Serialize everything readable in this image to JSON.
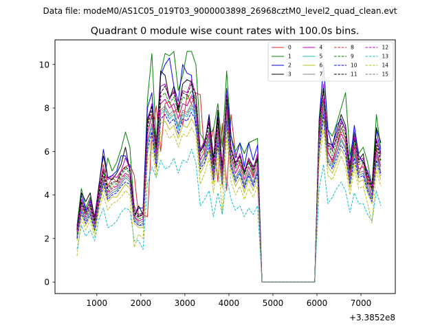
{
  "suptitle": "Data file: modeM0/AS1C05_019T03_9000003898_26968cztM0_level2_quad_clean.evt",
  "chart_data": {
    "type": "line",
    "title": "Quadrant 0 module wise count rates with 100.0s bins.",
    "xlabel": "",
    "ylabel": "",
    "offset_label": "+3.3852e8",
    "xlim": [
      50,
      7780
    ],
    "ylim": [
      -0.53,
      11.13
    ],
    "xticks": [
      1000,
      2000,
      3000,
      4000,
      5000,
      6000,
      7000
    ],
    "yticks": [
      0,
      2,
      4,
      6,
      8,
      10
    ],
    "legend_position": "top-right",
    "x": [
      550,
      650,
      750,
      850,
      950,
      1050,
      1150,
      1250,
      1350,
      1450,
      1550,
      1650,
      1750,
      1850,
      1950,
      2050,
      2150,
      2250,
      2350,
      2450,
      2550,
      2650,
      2750,
      2850,
      2950,
      3050,
      3150,
      3250,
      3350,
      3450,
      3550,
      3650,
      3750,
      3850,
      3950,
      4050,
      4150,
      4250,
      4350,
      4450,
      4550,
      4650,
      4750,
      4850,
      4950,
      5050,
      5150,
      5250,
      5350,
      5450,
      5550,
      5650,
      5750,
      5850,
      5950,
      6050,
      6150,
      6250,
      6350,
      6450,
      6550,
      6650,
      6750,
      6850,
      6950,
      7050,
      7150,
      7250,
      7350,
      7450
    ],
    "series": [
      {
        "name": "0",
        "color": "#d62728",
        "dash": false,
        "values": [
          2.4,
          3.6,
          3.1,
          3.5,
          2.9,
          4.2,
          5.4,
          4.4,
          4.8,
          4.6,
          5.1,
          5.3,
          5.4,
          4.9,
          3.0,
          3.1,
          3.0,
          6.8,
          8.1,
          6.0,
          8.2,
          8.3,
          7.8,
          8.0,
          7.2,
          8.6,
          8.2,
          8.7,
          8.6,
          5.7,
          6.0,
          7.1,
          4.6,
          7.3,
          4.2,
          7.7,
          5.9,
          5.4,
          5.1,
          5.6,
          4.9,
          5.8,
          0,
          0,
          0,
          0,
          0,
          0,
          0,
          0,
          0,
          0,
          0,
          0,
          0,
          6.8,
          8.4,
          6.0,
          5.5,
          6.2,
          7.1,
          6.6,
          4.9,
          6.3,
          5.0,
          5.5,
          4.8,
          4.2,
          6.2,
          5.0
        ]
      },
      {
        "name": "1",
        "color": "#008000",
        "dash": false,
        "values": [
          2.6,
          4.3,
          3.4,
          3.9,
          3.0,
          4.3,
          4.5,
          5.7,
          5.1,
          5.5,
          6.1,
          6.9,
          6.2,
          3.3,
          3.1,
          3.2,
          8.4,
          10.5,
          6.4,
          9.6,
          10.5,
          10.4,
          10.6,
          8.8,
          9.5,
          10.6,
          10.6,
          10.0,
          6.8,
          6.5,
          6.8,
          7.0,
          8.2,
          6.2,
          9.7,
          6.7,
          6.0,
          6.4,
          5.9,
          6.4,
          6.5,
          6.6,
          0,
          0,
          0,
          0,
          0,
          0,
          0,
          0,
          0,
          0,
          0,
          0,
          0,
          7.5,
          9.9,
          7.0,
          6.7,
          7.3,
          8.0,
          8.7,
          5.8,
          6.9,
          5.9,
          6.2,
          5.5,
          4.4,
          7.7,
          6.1
        ]
      },
      {
        "name": "2",
        "color": "#0000ff",
        "dash": false,
        "values": [
          2.5,
          4.0,
          3.3,
          3.7,
          3.0,
          4.4,
          6.1,
          4.8,
          4.9,
          5.1,
          5.8,
          5.8,
          5.3,
          3.0,
          3.4,
          3.4,
          8.0,
          8.7,
          5.8,
          9.5,
          10.0,
          10.3,
          9.0,
          8.3,
          10.0,
          9.6,
          9.5,
          7.0,
          6.0,
          6.3,
          7.7,
          5.7,
          7.6,
          5.0,
          8.9,
          6.7,
          5.7,
          6.4,
          5.3,
          6.4,
          5.6,
          6.3,
          0,
          0,
          0,
          0,
          0,
          0,
          0,
          0,
          0,
          0,
          0,
          0,
          0,
          7.3,
          10.0,
          7.0,
          6.2,
          7.2,
          7.5,
          7.0,
          5.4,
          7.2,
          5.8,
          5.5,
          5.1,
          4.4,
          7.0,
          5.9
        ]
      },
      {
        "name": "3",
        "color": "#000000",
        "dash": false,
        "values": [
          2.4,
          4.1,
          3.7,
          4.1,
          2.9,
          4.5,
          5.8,
          4.8,
          4.7,
          5.0,
          5.4,
          6.2,
          5.1,
          3.0,
          3.5,
          3.1,
          7.5,
          8.1,
          6.1,
          9.7,
          9.5,
          8.4,
          9.0,
          7.8,
          9.1,
          9.3,
          9.2,
          7.9,
          6.0,
          6.4,
          7.6,
          5.6,
          7.9,
          5.3,
          8.7,
          6.2,
          5.5,
          5.8,
          5.0,
          5.7,
          5.3,
          5.7,
          0,
          0,
          0,
          0,
          0,
          0,
          0,
          0,
          0,
          0,
          0,
          0,
          0,
          7.4,
          9.0,
          6.4,
          6.3,
          6.9,
          7.7,
          7.2,
          5.2,
          6.8,
          5.6,
          5.9,
          4.5,
          4.5,
          7.1,
          6.4
        ]
      },
      {
        "name": "4",
        "color": "#bf00bf",
        "dash": false,
        "values": [
          2.5,
          3.8,
          3.2,
          3.8,
          2.9,
          4.3,
          5.2,
          4.7,
          4.9,
          4.8,
          5.1,
          5.7,
          5.2,
          3.5,
          3.0,
          3.2,
          7.3,
          8.2,
          6.3,
          9.0,
          9.1,
          8.4,
          8.8,
          8.1,
          8.8,
          8.7,
          9.3,
          8.6,
          6.1,
          6.5,
          7.4,
          5.5,
          7.5,
          5.3,
          8.7,
          6.2,
          5.4,
          5.9,
          5.1,
          5.7,
          5.2,
          5.9,
          0,
          0,
          0,
          0,
          0,
          0,
          0,
          0,
          0,
          0,
          0,
          0,
          0,
          7.3,
          9.1,
          6.4,
          6.1,
          6.7,
          7.4,
          7.0,
          5.3,
          6.8,
          5.6,
          5.7,
          5.0,
          4.4,
          6.6,
          5.8
        ]
      },
      {
        "name": "5",
        "color": "#17becf",
        "dash": false,
        "values": [
          2.0,
          3.3,
          2.8,
          3.2,
          2.5,
          3.7,
          4.6,
          3.9,
          4.1,
          4.2,
          4.5,
          4.8,
          4.6,
          2.9,
          2.6,
          2.7,
          6.3,
          7.1,
          5.5,
          7.7,
          7.9,
          7.5,
          7.7,
          7.0,
          7.7,
          7.6,
          8.0,
          7.6,
          5.3,
          5.7,
          6.5,
          4.8,
          6.6,
          4.6,
          7.6,
          5.4,
          4.7,
          5.1,
          4.4,
          5.0,
          4.5,
          5.1,
          0,
          0,
          0,
          0,
          0,
          0,
          0,
          0,
          0,
          0,
          0,
          0,
          0,
          6.3,
          7.9,
          5.6,
          5.3,
          5.9,
          6.5,
          6.1,
          4.6,
          5.9,
          4.9,
          5.0,
          4.3,
          3.8,
          5.8,
          5.0
        ]
      },
      {
        "name": "6",
        "color": "#bcbd22",
        "dash": false,
        "values": [
          1.9,
          3.1,
          2.6,
          3.0,
          2.3,
          3.5,
          4.3,
          3.7,
          3.9,
          3.9,
          4.2,
          4.5,
          4.3,
          2.7,
          2.5,
          2.5,
          5.9,
          6.6,
          5.2,
          7.3,
          7.4,
          7.0,
          7.2,
          6.6,
          7.2,
          7.1,
          7.5,
          7.1,
          5.0,
          5.4,
          6.1,
          4.5,
          6.2,
          4.3,
          7.1,
          5.1,
          4.4,
          4.8,
          4.1,
          4.7,
          4.2,
          4.8,
          0,
          0,
          0,
          0,
          0,
          0,
          0,
          0,
          0,
          0,
          0,
          0,
          0,
          5.9,
          7.4,
          5.3,
          5.0,
          5.5,
          6.1,
          5.7,
          4.3,
          5.5,
          4.6,
          4.7,
          4.1,
          3.6,
          5.4,
          4.7
        ]
      },
      {
        "name": "7",
        "color": "#7f7f7f",
        "dash": false,
        "values": [
          2.1,
          3.4,
          2.9,
          3.3,
          2.5,
          3.8,
          4.7,
          4.0,
          4.2,
          4.3,
          4.6,
          4.9,
          4.7,
          3.0,
          2.7,
          2.8,
          6.5,
          7.3,
          5.6,
          7.9,
          8.1,
          7.7,
          7.9,
          7.2,
          7.9,
          7.8,
          8.2,
          7.8,
          5.4,
          5.8,
          6.7,
          4.9,
          6.8,
          4.7,
          7.8,
          5.5,
          4.8,
          5.2,
          4.5,
          5.1,
          4.6,
          5.2,
          0,
          0,
          0,
          0,
          0,
          0,
          0,
          0,
          0,
          0,
          0,
          0,
          0,
          6.5,
          8.1,
          5.7,
          5.4,
          6.0,
          6.6,
          6.2,
          4.7,
          6.0,
          5.0,
          5.1,
          4.4,
          3.9,
          5.9,
          5.1
        ]
      },
      {
        "name": "8",
        "color": "#d62728",
        "dash": true,
        "values": [
          2.3,
          3.5,
          3.0,
          3.4,
          2.7,
          3.9,
          4.9,
          4.1,
          4.4,
          4.4,
          4.8,
          5.0,
          4.9,
          3.1,
          2.8,
          2.9,
          6.8,
          7.7,
          5.9,
          8.2,
          8.4,
          8.0,
          8.2,
          7.5,
          8.2,
          8.1,
          8.6,
          8.1,
          5.6,
          6.0,
          6.9,
          5.1,
          7.1,
          4.9,
          8.1,
          5.8,
          5.0,
          5.5,
          4.7,
          5.3,
          4.8,
          5.4,
          0,
          0,
          0,
          0,
          0,
          0,
          0,
          0,
          0,
          0,
          0,
          0,
          0,
          6.7,
          8.4,
          6.0,
          5.6,
          6.2,
          6.9,
          6.4,
          4.9,
          6.3,
          5.2,
          5.3,
          4.6,
          4.0,
          6.1,
          5.3
        ]
      },
      {
        "name": "9",
        "color": "#008000",
        "dash": true,
        "values": [
          2.2,
          3.6,
          3.1,
          3.5,
          2.7,
          4.0,
          5.0,
          4.2,
          4.5,
          4.5,
          4.9,
          5.2,
          5.0,
          3.2,
          2.9,
          3.0,
          7.0,
          7.9,
          6.0,
          8.5,
          8.7,
          8.2,
          8.5,
          7.8,
          8.5,
          8.4,
          8.8,
          8.4,
          5.8,
          6.2,
          7.1,
          5.2,
          7.3,
          5.0,
          8.4,
          5.9,
          5.2,
          5.6,
          4.9,
          5.5,
          5.0,
          5.6,
          0,
          0,
          0,
          0,
          0,
          0,
          0,
          0,
          0,
          0,
          0,
          0,
          0,
          7.0,
          8.7,
          6.2,
          5.8,
          6.4,
          7.1,
          6.6,
          5.0,
          6.5,
          5.4,
          5.5,
          4.7,
          4.2,
          6.3,
          5.5
        ]
      },
      {
        "name": "10",
        "color": "#0000ff",
        "dash": true,
        "values": [
          2.0,
          3.2,
          2.7,
          3.1,
          2.4,
          3.6,
          4.5,
          3.8,
          4.0,
          4.1,
          4.4,
          4.6,
          4.5,
          2.8,
          2.6,
          2.6,
          6.1,
          6.9,
          5.3,
          7.5,
          7.7,
          7.3,
          7.5,
          6.8,
          7.5,
          7.4,
          7.8,
          7.4,
          5.2,
          5.5,
          6.3,
          4.7,
          6.4,
          4.5,
          7.4,
          5.3,
          4.6,
          5.0,
          4.3,
          4.9,
          4.4,
          5.0,
          0,
          0,
          0,
          0,
          0,
          0,
          0,
          0,
          0,
          0,
          0,
          0,
          0,
          6.1,
          7.7,
          5.5,
          5.2,
          5.7,
          6.3,
          5.9,
          4.5,
          5.7,
          4.8,
          4.9,
          4.2,
          3.7,
          5.6,
          4.9
        ]
      },
      {
        "name": "11",
        "color": "#000000",
        "dash": true,
        "values": [
          2.4,
          3.7,
          3.2,
          3.6,
          2.8,
          4.1,
          5.1,
          4.3,
          4.6,
          4.6,
          5.0,
          5.3,
          5.1,
          3.2,
          3.0,
          3.1,
          7.2,
          8.1,
          6.2,
          8.7,
          9.0,
          8.5,
          8.7,
          8.0,
          8.7,
          8.6,
          9.1,
          8.6,
          6.0,
          6.4,
          7.3,
          5.4,
          7.5,
          5.2,
          8.6,
          6.1,
          5.3,
          5.8,
          5.0,
          5.6,
          5.1,
          5.7,
          0,
          0,
          0,
          0,
          0,
          0,
          0,
          0,
          0,
          0,
          0,
          0,
          0,
          7.2,
          8.9,
          6.3,
          6.0,
          6.6,
          7.3,
          6.8,
          5.2,
          6.6,
          5.5,
          5.6,
          4.9,
          4.3,
          6.5,
          5.6
        ]
      },
      {
        "name": "12",
        "color": "#bf00bf",
        "dash": true,
        "values": [
          2.3,
          3.5,
          3.0,
          3.4,
          2.6,
          3.9,
          4.8,
          4.1,
          4.3,
          4.4,
          4.7,
          5.0,
          4.8,
          3.0,
          2.8,
          2.9,
          6.8,
          7.6,
          5.8,
          8.2,
          8.4,
          8.0,
          8.2,
          7.5,
          8.2,
          8.1,
          8.5,
          8.1,
          5.6,
          6.0,
          6.9,
          5.0,
          7.0,
          4.9,
          8.1,
          5.7,
          5.0,
          5.4,
          4.7,
          5.3,
          4.8,
          5.4,
          0,
          0,
          0,
          0,
          0,
          0,
          0,
          0,
          0,
          0,
          0,
          0,
          0,
          6.7,
          8.4,
          5.9,
          5.6,
          6.2,
          6.8,
          6.4,
          4.8,
          6.2,
          5.2,
          5.3,
          4.6,
          4.0,
          6.1,
          5.3
        ]
      },
      {
        "name": "13",
        "color": "#17becf",
        "dash": true,
        "values": [
          1.5,
          2.6,
          2.1,
          2.4,
          1.9,
          2.9,
          3.4,
          2.5,
          2.6,
          2.8,
          3.2,
          3.4,
          3.3,
          1.9,
          1.9,
          1.5,
          4.5,
          5.3,
          4.8,
          5.6,
          5.2,
          5.3,
          5.7,
          5.0,
          5.6,
          5.5,
          6.1,
          5.5,
          3.5,
          3.8,
          4.2,
          3.0,
          4.1,
          3.1,
          4.8,
          3.8,
          3.3,
          3.5,
          3.0,
          3.4,
          3.1,
          3.5,
          0,
          0,
          0,
          0,
          0,
          0,
          0,
          0,
          0,
          0,
          0,
          0,
          0,
          4.3,
          5.4,
          3.6,
          3.9,
          4.3,
          4.6,
          4.2,
          3.2,
          4.1,
          3.6,
          3.6,
          3.1,
          2.8,
          4.2,
          3.5
        ]
      },
      {
        "name": "14",
        "color": "#bcbd22",
        "dash": true,
        "values": [
          1.2,
          2.9,
          2.4,
          2.8,
          2.1,
          3.3,
          4.0,
          3.3,
          3.6,
          3.7,
          3.9,
          4.2,
          4.0,
          1.6,
          2.2,
          2.0,
          5.5,
          6.2,
          4.8,
          6.9,
          7.0,
          6.6,
          6.8,
          6.2,
          6.8,
          6.7,
          7.1,
          6.7,
          4.5,
          5.0,
          5.7,
          4.1,
          5.8,
          3.2,
          6.7,
          4.6,
          4.0,
          4.4,
          3.8,
          4.3,
          3.9,
          4.4,
          0,
          0,
          0,
          0,
          0,
          0,
          0,
          0,
          0,
          0,
          0,
          0,
          0,
          5.5,
          7.0,
          4.9,
          4.7,
          5.2,
          5.8,
          5.3,
          4.0,
          5.2,
          4.3,
          4.4,
          3.6,
          2.7,
          5.1,
          4.4
        ]
      },
      {
        "name": "15",
        "color": "#7f7f7f",
        "dash": true,
        "values": [
          2.1,
          3.3,
          2.8,
          3.2,
          2.5,
          3.7,
          4.6,
          3.9,
          4.1,
          4.2,
          4.5,
          4.8,
          4.6,
          2.9,
          2.6,
          2.7,
          6.4,
          7.2,
          5.5,
          7.8,
          8.0,
          7.6,
          7.8,
          7.1,
          7.8,
          7.7,
          8.1,
          7.7,
          5.3,
          5.7,
          6.6,
          4.8,
          6.7,
          4.6,
          7.7,
          5.4,
          4.7,
          5.1,
          4.4,
          5.0,
          4.5,
          5.1,
          0,
          0,
          0,
          0,
          0,
          0,
          0,
          0,
          0,
          0,
          0,
          0,
          0,
          6.4,
          8.0,
          5.6,
          5.3,
          5.9,
          6.5,
          6.1,
          4.6,
          5.9,
          4.9,
          5.0,
          4.3,
          3.8,
          5.8,
          5.0
        ]
      }
    ]
  }
}
